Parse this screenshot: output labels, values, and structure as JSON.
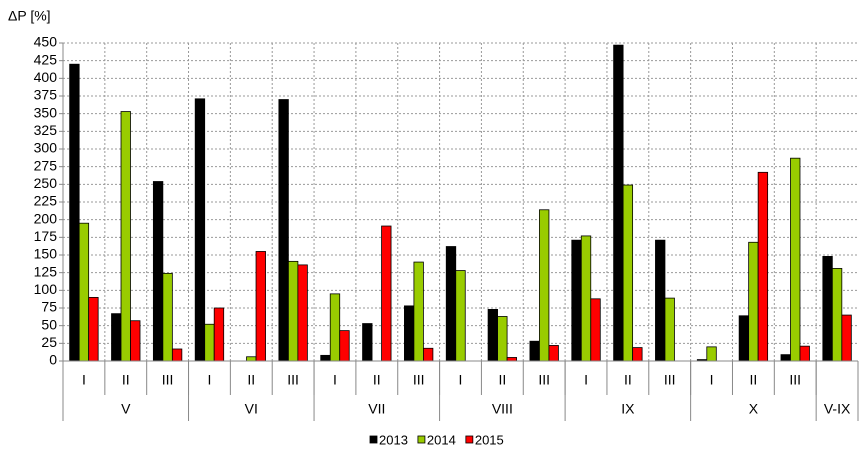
{
  "chart_data": {
    "type": "bar",
    "y_label": "ΔP [%]",
    "categories": [
      "I",
      "II",
      "III",
      "I",
      "II",
      "III",
      "I",
      "II",
      "III",
      "I",
      "II",
      "III",
      "I",
      "II",
      "III",
      "I",
      "II",
      "III",
      null
    ],
    "groups": [
      {
        "label": "V",
        "count": 3
      },
      {
        "label": "VI",
        "count": 3
      },
      {
        "label": "VII",
        "count": 3
      },
      {
        "label": "VIII",
        "count": 3
      },
      {
        "label": "IX",
        "count": 3
      },
      {
        "label": "X",
        "count": 3
      },
      {
        "label": "V-IX",
        "count": 1
      }
    ],
    "series": [
      {
        "name": "2013",
        "color": "#000000",
        "values": [
          420,
          67,
          254,
          371,
          null,
          370,
          8,
          53,
          78,
          162,
          73,
          28,
          171,
          447,
          171,
          2,
          64,
          9,
          148
        ]
      },
      {
        "name": "2014",
        "color": "#99cc00",
        "values": [
          195,
          353,
          124,
          52,
          6,
          141,
          95,
          null,
          140,
          128,
          63,
          214,
          177,
          249,
          89,
          20,
          168,
          287,
          131
        ]
      },
      {
        "name": "2015",
        "color": "#ff0000",
        "values": [
          90,
          57,
          17,
          75,
          155,
          136,
          43,
          191,
          18,
          null,
          5,
          22,
          88,
          19,
          null,
          null,
          267,
          21,
          65
        ]
      }
    ],
    "ylim": [
      0,
      450
    ],
    "yticks": [
      0,
      25,
      50,
      75,
      100,
      125,
      150,
      175,
      200,
      225,
      250,
      275,
      300,
      325,
      350,
      375,
      400,
      425,
      450
    ],
    "grid": true,
    "legend": "bottom"
  }
}
